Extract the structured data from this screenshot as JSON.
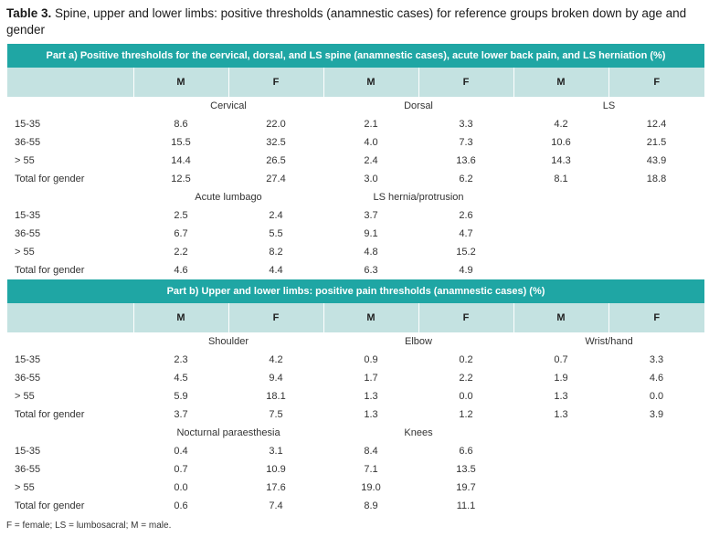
{
  "caption": {
    "label": "Table 3.",
    "text": "Spine, upper and lower limbs: positive thresholds (anamnestic cases) for reference groups broken down by age and gender"
  },
  "columns": {
    "m": "M",
    "f": "F"
  },
  "part_a": {
    "title": "Part a) Positive thresholds for the cervical, dorsal, and LS spine (anamnestic cases), acute lower back pain, and LS herniation (%)",
    "groups1": [
      "Cervical",
      "Dorsal",
      "LS"
    ],
    "rows1": [
      {
        "label": "15-35",
        "values": [
          "8.6",
          "22.0",
          "2.1",
          "3.3",
          "4.2",
          "12.4"
        ]
      },
      {
        "label": "36-55",
        "values": [
          "15.5",
          "32.5",
          "4.0",
          "7.3",
          "10.6",
          "21.5"
        ]
      },
      {
        "label": "> 55",
        "values": [
          "14.4",
          "26.5",
          "2.4",
          "13.6",
          "14.3",
          "43.9"
        ]
      },
      {
        "label": "Total for gender",
        "values": [
          "12.5",
          "27.4",
          "3.0",
          "6.2",
          "8.1",
          "18.8"
        ]
      }
    ],
    "groups2": [
      "Acute lumbago",
      "LS hernia/protrusion",
      ""
    ],
    "rows2": [
      {
        "label": "15-35",
        "values": [
          "2.5",
          "2.4",
          "3.7",
          "2.6",
          "",
          ""
        ]
      },
      {
        "label": "36-55",
        "values": [
          "6.7",
          "5.5",
          "9.1",
          "4.7",
          "",
          ""
        ]
      },
      {
        "label": "> 55",
        "values": [
          "2.2",
          "8.2",
          "4.8",
          "15.2",
          "",
          ""
        ]
      },
      {
        "label": "Total for gender",
        "values": [
          "4.6",
          "4.4",
          "6.3",
          "4.9",
          "",
          ""
        ]
      }
    ]
  },
  "part_b": {
    "title": "Part b) Upper and lower limbs: positive pain thresholds (anamnestic cases) (%)",
    "groups1": [
      "Shoulder",
      "Elbow",
      "Wrist/hand"
    ],
    "rows1": [
      {
        "label": "15-35",
        "values": [
          "2.3",
          "4.2",
          "0.9",
          "0.2",
          "0.7",
          "3.3"
        ]
      },
      {
        "label": "36-55",
        "values": [
          "4.5",
          "9.4",
          "1.7",
          "2.2",
          "1.9",
          "4.6"
        ]
      },
      {
        "label": "> 55",
        "values": [
          "5.9",
          "18.1",
          "1.3",
          "0.0",
          "1.3",
          "0.0"
        ]
      },
      {
        "label": "Total for gender",
        "values": [
          "3.7",
          "7.5",
          "1.3",
          "1.2",
          "1.3",
          "3.9"
        ]
      }
    ],
    "groups2": [
      "Nocturnal paraesthesia",
      "Knees",
      ""
    ],
    "rows2": [
      {
        "label": "15-35",
        "values": [
          "0.4",
          "3.1",
          "8.4",
          "6.6",
          "",
          ""
        ]
      },
      {
        "label": "36-55",
        "values": [
          "0.7",
          "10.9",
          "7.1",
          "13.5",
          "",
          ""
        ]
      },
      {
        "label": "> 55",
        "values": [
          "0.0",
          "17.6",
          "19.0",
          "19.7",
          "",
          ""
        ]
      },
      {
        "label": "Total for gender",
        "values": [
          "0.6",
          "7.4",
          "8.9",
          "11.1",
          "",
          ""
        ]
      }
    ]
  },
  "footnote": "F = female; LS = lumbosacral; M = male.",
  "colors": {
    "header_band": "#1fa6a4",
    "subheader_band": "#c4e2e1"
  }
}
